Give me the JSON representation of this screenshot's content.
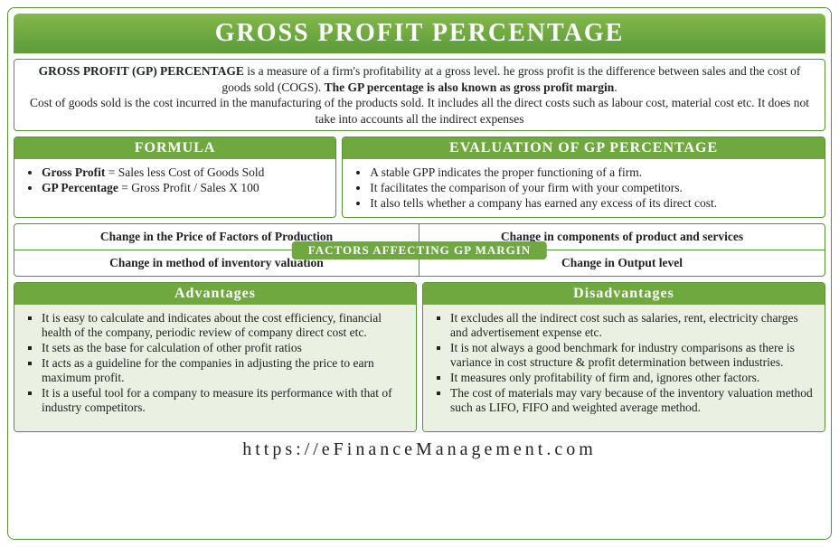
{
  "title": "GROSS PROFIT PERCENTAGE",
  "intro": {
    "lead_bold": "GROSS PROFIT (GP) PERCENTAGE",
    "lead_rest": " is a measure of a firm's profitability at a gross level. he gross profit is the difference between sales and the cost of goods sold (COGS). ",
    "lead_bold2": "The GP percentage is also known as gross profit margin",
    "lead_end": ".",
    "line2": "Cost of goods sold is the cost incurred in the manufacturing of the products sold. It includes all the direct costs such as labour cost, material cost etc. It does not take into accounts all the indirect expenses"
  },
  "formula": {
    "header": "FORMULA",
    "items": [
      {
        "label": "Gross Profit",
        "def": " = Sales less Cost of Goods Sold"
      },
      {
        "label": "GP Percentage",
        "def": " = Gross Profit / Sales X 100"
      }
    ]
  },
  "evaluation": {
    "header": "EVALUATION OF GP PERCENTAGE",
    "items": [
      "A stable GPP indicates the proper functioning of a firm.",
      "It facilitates the comparison of your firm with your competitors.",
      "It also tells whether a company has earned any excess of its direct cost."
    ]
  },
  "factors": {
    "label": "FACTORS AFFECTING GP MARGIN",
    "cells": [
      "Change in the Price of Factors of Production",
      "Change in components of product and services",
      "Change in method of inventory valuation",
      "Change in Output level"
    ]
  },
  "advantages": {
    "header": "Advantages",
    "items": [
      "It is easy to calculate and indicates about the cost efficiency, financial health of the company, periodic review of company direct cost etc.",
      "It sets as the base for calculation of other profit ratios",
      "It acts as a guideline for the companies in adjusting the price to earn maximum profit.",
      "It is a useful tool for a company to measure its performance with that of industry competitors."
    ]
  },
  "disadvantages": {
    "header": "Disadvantages",
    "items": [
      "It excludes all the indirect cost such as salaries, rent, electricity charges and advertisement expense etc.",
      "It is not always a good benchmark for industry comparisons as there is variance in cost structure & profit determination between industries.",
      "It measures only profitability of firm and, ignores other factors.",
      "The cost of materials may vary because of the inventory valuation method such as LIFO, FIFO and weighted average method."
    ]
  },
  "footer": "https://eFinanceManagement.com"
}
